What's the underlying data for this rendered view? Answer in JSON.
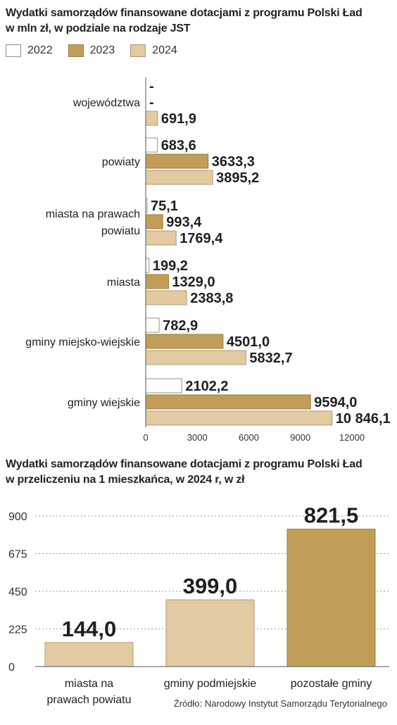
{
  "chart_data": [
    {
      "type": "bar",
      "orientation": "horizontal",
      "title": "Wydatki samorządów finansowane dotacjami z programu Polski Ład",
      "subtitle": "w mln zł, w podziale na rodzaje JST",
      "categories": [
        "województwa",
        "powiaty",
        "miasta na prawach powiatu",
        "miasta",
        "gminy miejsko-wiejskie",
        "gminy wiejskie"
      ],
      "category_lines": [
        [
          "województwa"
        ],
        [
          "powiaty"
        ],
        [
          "miasta na prawach",
          "powiatu"
        ],
        [
          "miasta"
        ],
        [
          "gminy miejsko-wiejskie"
        ],
        [
          "gminy wiejskie"
        ]
      ],
      "series": [
        {
          "name": "2022",
          "values": [
            null,
            683.6,
            75.1,
            199.2,
            782.9,
            2102.2
          ],
          "labels": [
            "-",
            "683,6",
            "75,1",
            "199,2",
            "782,9",
            "2102,2"
          ],
          "color": "#ffffff",
          "stroke": "#8a9a84"
        },
        {
          "name": "2023",
          "values": [
            null,
            3633.3,
            993.4,
            1329.0,
            4501.0,
            9594.0
          ],
          "labels": [
            "-",
            "3633,3",
            "993,4",
            "1329,0",
            "4501,0",
            "9594,0"
          ],
          "color": "#c29d57",
          "stroke": "#9c7c3e"
        },
        {
          "name": "2024",
          "values": [
            691.9,
            3895.2,
            1769.4,
            2383.8,
            5832.7,
            10846.1
          ],
          "labels": [
            "691,9",
            "3895,2",
            "1769,4",
            "2383,8",
            "5832,7",
            "10 846,1"
          ],
          "color": "#e2caa2",
          "stroke": "#b89a6c"
        }
      ],
      "xlim": [
        0,
        12000
      ],
      "x_ticks": [
        0,
        3000,
        6000,
        9000,
        12000
      ],
      "legend_position": "top-left"
    },
    {
      "type": "bar",
      "orientation": "vertical",
      "title": "Wydatki samorządów finansowane dotacjami z programu Polski Ład",
      "subtitle": "w przeliczeniu na 1 mieszkańca, w 2024 r, w zł",
      "categories": [
        "miasta na prawach powiatu",
        "gminy podmiejskie",
        "pozostałe gminy"
      ],
      "category_lines": [
        [
          "miasta na",
          "prawach powiatu"
        ],
        [
          "gminy podmiejskie"
        ],
        [
          "pozostałe gminy"
        ]
      ],
      "values": [
        144.0,
        399.0,
        821.5
      ],
      "labels": [
        "144,0",
        "399,0",
        "821,5"
      ],
      "colors": [
        "#e2caa2",
        "#e2caa2",
        "#c29d57"
      ],
      "ylim": [
        0,
        900
      ],
      "y_ticks": [
        0,
        225,
        450,
        675,
        900
      ]
    }
  ],
  "source": "Źródło: Narodowy Instytut Samorządu Terytorialnego"
}
